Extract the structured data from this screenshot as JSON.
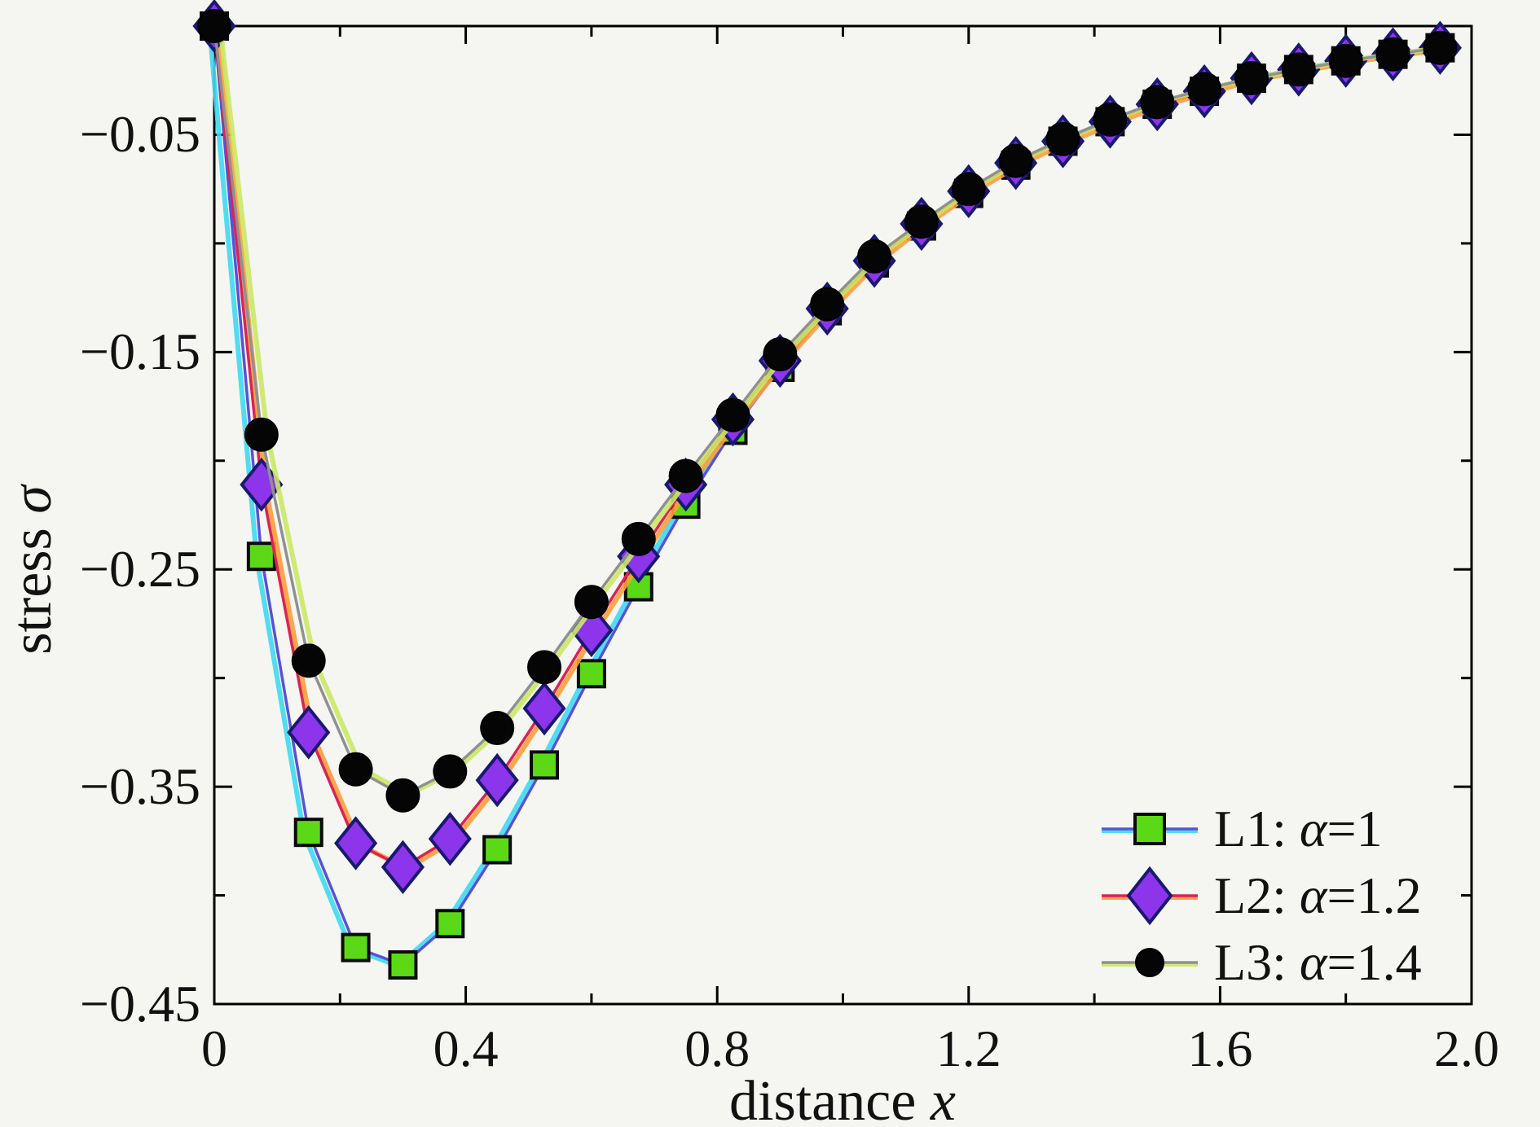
{
  "chart_data": {
    "type": "line",
    "title": "",
    "xlabel": "distance x",
    "ylabel": "stress σ",
    "xlim": [
      0,
      2.0
    ],
    "ylim": [
      -0.45,
      0
    ],
    "grid": false,
    "legend_position": "lower right",
    "xticks_major": [
      0,
      0.4,
      0.8,
      1.2,
      1.6,
      2.0
    ],
    "xtick_labels": [
      "0",
      "0.4",
      "0.8",
      "1.2",
      "1.6",
      "2.0"
    ],
    "xticks_minor": [
      0.2,
      0.6,
      1.0,
      1.4,
      1.8
    ],
    "yticks_major": [
      -0.05,
      -0.15,
      -0.25,
      -0.35,
      -0.45
    ],
    "ytick_labels": [
      "−0.05",
      "−0.15",
      "−0.25",
      "−0.35",
      "−0.45"
    ],
    "yticks_minor": [
      -0.1,
      -0.2,
      -0.3,
      -0.4
    ],
    "x": [
      0,
      0.075,
      0.15,
      0.225,
      0.3,
      0.375,
      0.45,
      0.525,
      0.6,
      0.675,
      0.75,
      0.825,
      0.9,
      0.975,
      1.05,
      1.125,
      1.2,
      1.275,
      1.35,
      1.425,
      1.5,
      1.575,
      1.65,
      1.725,
      1.8,
      1.875,
      1.95
    ],
    "series": [
      {
        "name": "L1: α=1",
        "marker": "square",
        "marker_fill": "#5cd916",
        "marker_edge": "#0a0a0a",
        "line_color": "#5753d6",
        "halo_color": "#3fd9f2",
        "values": [
          0,
          -0.244,
          -0.371,
          -0.424,
          -0.432,
          -0.413,
          -0.379,
          -0.34,
          -0.298,
          -0.258,
          -0.22,
          -0.186,
          -0.157,
          -0.131,
          -0.109,
          -0.092,
          -0.077,
          -0.064,
          -0.053,
          -0.044,
          -0.036,
          -0.03,
          -0.024,
          -0.02,
          -0.016,
          -0.013,
          -0.01
        ]
      },
      {
        "name": "L2: α=1.2",
        "marker": "diamond",
        "marker_fill": "#8c35ea",
        "marker_edge": "#191970",
        "line_color": "#dd2255",
        "halo_color": "#ff9d3a",
        "values": [
          0,
          -0.211,
          -0.325,
          -0.376,
          -0.387,
          -0.374,
          -0.347,
          -0.314,
          -0.278,
          -0.244,
          -0.211,
          -0.181,
          -0.154,
          -0.13,
          -0.108,
          -0.091,
          -0.076,
          -0.063,
          -0.053,
          -0.044,
          -0.036,
          -0.03,
          -0.024,
          -0.02,
          -0.016,
          -0.013,
          -0.01
        ]
      },
      {
        "name": "L3: α=1.4",
        "marker": "circle",
        "marker_fill": "#050505",
        "marker_edge": "#000000",
        "line_color": "#909090",
        "halo_color": "#cbe966",
        "values": [
          0,
          -0.188,
          -0.292,
          -0.342,
          -0.354,
          -0.343,
          -0.323,
          -0.295,
          -0.265,
          -0.236,
          -0.207,
          -0.179,
          -0.151,
          -0.128,
          -0.106,
          -0.09,
          -0.075,
          -0.062,
          -0.052,
          -0.043,
          -0.035,
          -0.029,
          -0.024,
          -0.02,
          -0.016,
          -0.013,
          -0.01
        ]
      }
    ]
  }
}
